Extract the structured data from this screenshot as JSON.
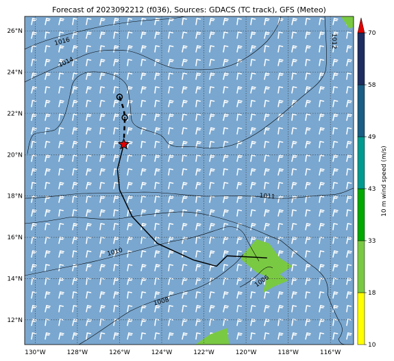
{
  "title": "Forecast of 2023092212 (f036), Sources: GDACS (TC track), GFS (Meteo)",
  "map": {
    "lat_labels": [
      "26°N",
      "24°N",
      "22°N",
      "20°N",
      "18°N",
      "16°N",
      "14°N",
      "12°N"
    ],
    "lon_labels": [
      "130°W",
      "128°W",
      "126°W",
      "124°W",
      "122°W",
      "120°W",
      "118°W",
      "116°W"
    ],
    "lat_values": [
      26,
      24,
      22,
      20,
      18,
      16,
      14,
      12
    ],
    "lon_values": [
      -130,
      -128,
      -126,
      -124,
      -122,
      -120,
      -118,
      -116
    ],
    "extent": {
      "lon_min": -130.5,
      "lon_max": -114.9,
      "lat_min": 10.8,
      "lat_max": 26.7
    },
    "isobar_labels": [
      {
        "text": "1016",
        "lon": -128.7,
        "lat": 25.4,
        "rot": -15
      },
      {
        "text": "1014",
        "lon": -128.5,
        "lat": 24.4,
        "rot": -25
      },
      {
        "text": "1012",
        "lon": -115.9,
        "lat": 25.5,
        "rot": 90
      },
      {
        "text": "1011",
        "lon": -119.0,
        "lat": 17.9,
        "rot": 5
      },
      {
        "text": "1010",
        "lon": -126.2,
        "lat": 15.2,
        "rot": -15
      },
      {
        "text": "1008",
        "lon": -124.0,
        "lat": 12.8,
        "rot": -15
      },
      {
        "text": "1006",
        "lon": -119.2,
        "lat": 13.8,
        "rot": -35
      }
    ],
    "track": {
      "past": [
        [
          -126.0,
          22.8
        ],
        [
          -125.8,
          22.2
        ],
        [
          -125.75,
          21.8
        ],
        [
          -125.8,
          20.5
        ]
      ],
      "forecast": [
        [
          -125.8,
          20.5
        ],
        [
          -126.1,
          19.3
        ],
        [
          -126.0,
          18.3
        ],
        [
          -125.4,
          17.0
        ],
        [
          -124.2,
          15.7
        ],
        [
          -122.5,
          14.9
        ],
        [
          -121.4,
          14.6
        ],
        [
          -120.9,
          15.1
        ],
        [
          -119.0,
          15.0
        ]
      ],
      "past_points": [
        [
          -126.0,
          22.8
        ],
        [
          -125.75,
          21.8
        ]
      ],
      "current": [
        -125.8,
        20.5
      ]
    },
    "high_wind_zones": [
      {
        "speed": 18,
        "polygon": [
          [
            -120.2,
            15.1
          ],
          [
            -119.5,
            15.9
          ],
          [
            -118.9,
            15.7
          ],
          [
            -118.4,
            15.0
          ],
          [
            -117.8,
            14.6
          ],
          [
            -118.4,
            14.2
          ],
          [
            -118.0,
            13.9
          ],
          [
            -118.7,
            13.6
          ],
          [
            -119.2,
            13.3
          ],
          [
            -119.0,
            14.1
          ],
          [
            -119.5,
            14.3
          ],
          [
            -120.2,
            14.9
          ]
        ]
      },
      {
        "speed": 18,
        "polygon": [
          [
            -122.4,
            10.8
          ],
          [
            -121.7,
            11.3
          ],
          [
            -120.9,
            11.6
          ],
          [
            -120.8,
            10.8
          ]
        ]
      },
      {
        "speed": 18,
        "polygon": [
          [
            -115.5,
            26.7
          ],
          [
            -114.9,
            26.7
          ],
          [
            -114.9,
            26.2
          ],
          [
            -115.1,
            26.1
          ]
        ]
      }
    ]
  },
  "colorbar": {
    "label": "10 m wind speed (m/s)",
    "ticks": [
      "10",
      "18",
      "33",
      "43",
      "49",
      "58",
      "70"
    ],
    "segments": [
      {
        "from": "10",
        "to": "18",
        "color": "#ffff00"
      },
      {
        "from": "18",
        "to": "33",
        "color": "#7ac943"
      },
      {
        "from": "33",
        "to": "43",
        "color": "#00a800"
      },
      {
        "from": "43",
        "to": "49",
        "color": "#009a90"
      },
      {
        "from": "49",
        "to": "58",
        "color": "#1a5d85"
      },
      {
        "from": "58",
        "to": "70",
        "color": "#1e2d60"
      }
    ],
    "extend_color": "#e00000",
    "background_color": "#7aa7cf"
  }
}
